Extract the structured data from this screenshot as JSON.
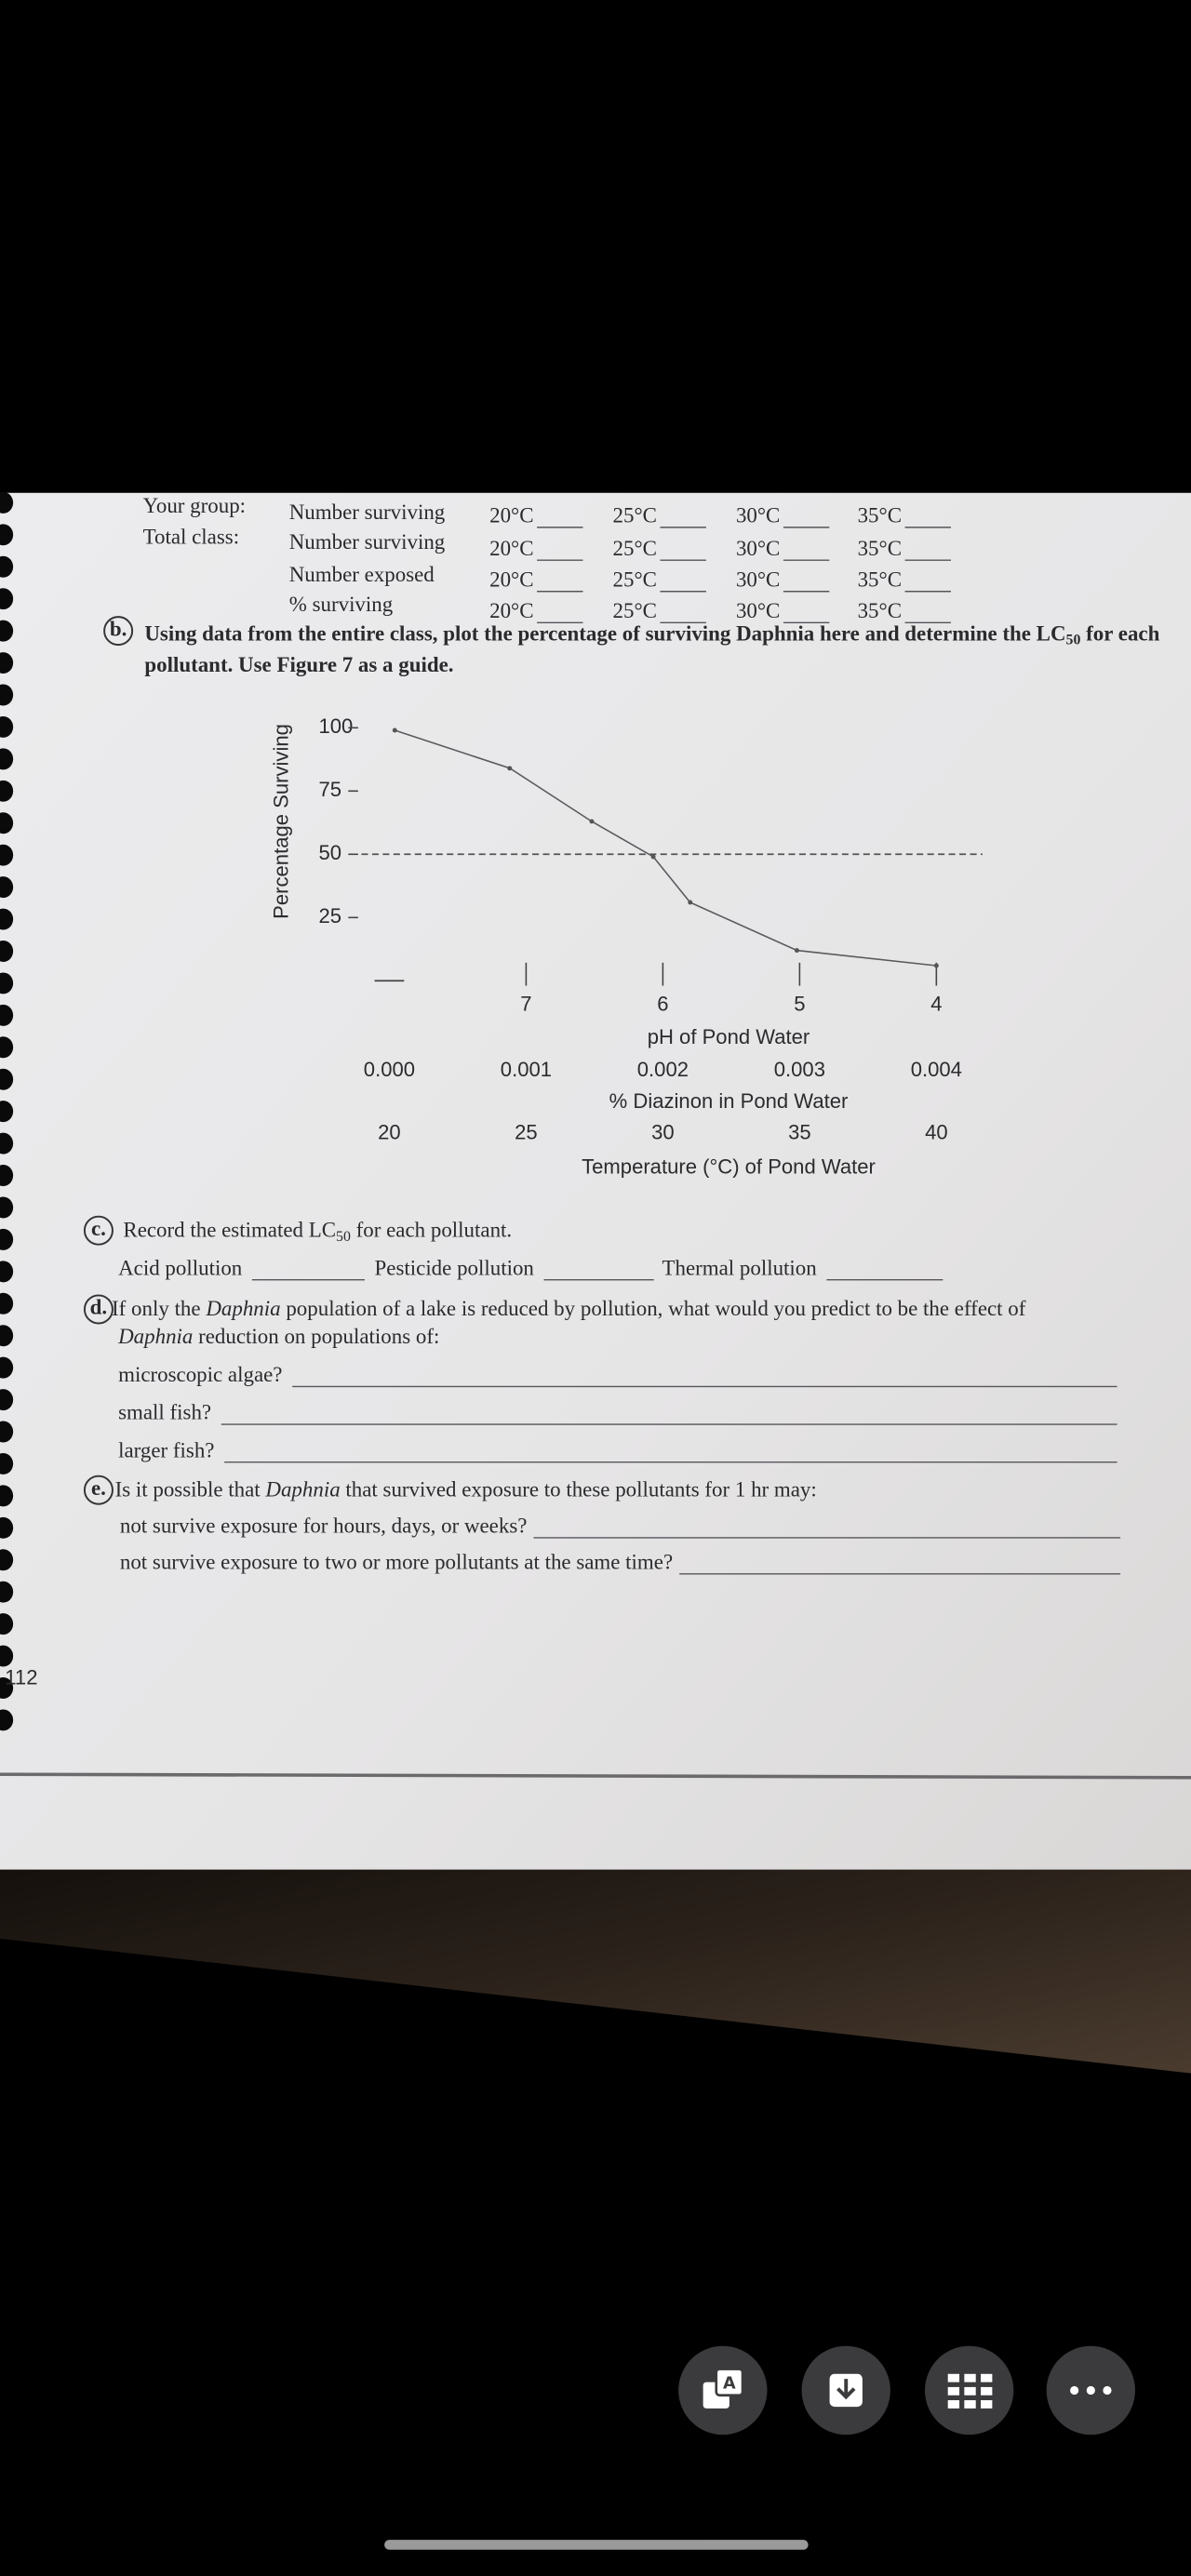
{
  "header_table": {
    "rows": [
      {
        "group": "Your group:",
        "measure": "Number surviving",
        "temps": [
          "20°C",
          "25°C",
          "30°C",
          "35°C"
        ]
      },
      {
        "group": "Total class:",
        "measure": "Number surviving",
        "temps": [
          "20°C",
          "25°C",
          "30°C",
          "35°C"
        ]
      },
      {
        "measure": "Number exposed",
        "temps": [
          "20°C",
          "25°C",
          "30°C",
          "35°C"
        ]
      },
      {
        "measure": "% surviving",
        "temps": [
          "20°C",
          "25°C",
          "30°C",
          "35°C"
        ]
      }
    ]
  },
  "question_b": {
    "marker": "b.",
    "line1": [
      "Using data from the entire class, plot the percentage of surviving Daphnia here and determine the LC",
      "50",
      " for each"
    ],
    "line2": "pollutant. Use Figure 7 as a guide."
  },
  "graph": {
    "type": "line",
    "y_label": "Percentage Surviving",
    "ylim": [
      0,
      100
    ],
    "yticks": [
      100,
      75,
      50,
      25
    ],
    "reference_line": 50,
    "x_axes": [
      {
        "label": "pH of Pond Water",
        "xlim": [
          8,
          4
        ],
        "xticks": [
          7,
          6,
          5,
          4
        ]
      },
      {
        "label": "% Diazinon in Pond Water",
        "xlim": [
          0,
          0.004
        ],
        "xticks": [
          {
            "value": 0,
            "label": "0.000"
          },
          {
            "value": 0.001,
            "label": "0.001"
          },
          {
            "value": 0.002,
            "label": "0.002"
          },
          {
            "value": 0.003,
            "label": "0.003"
          },
          {
            "value": 0.004,
            "label": "0.004"
          }
        ]
      },
      {
        "label": "Temperature (°C) of Pond Water",
        "xlim": [
          20,
          40
        ],
        "xticks": [
          20,
          25,
          30,
          35,
          40
        ]
      }
    ],
    "curve": {
      "x": [
        7.96,
        7.12,
        6.52,
        6.07,
        5.8,
        5.02,
        4.0
      ],
      "y": [
        99,
        84,
        63,
        49,
        31,
        12,
        6
      ]
    }
  },
  "question_c": {
    "marker": "c.",
    "text": [
      "Record the estimated LC",
      "50",
      " for each pollutant."
    ],
    "blanks": [
      "Acid pollution",
      "Pesticide pollution",
      "Thermal pollution"
    ]
  },
  "question_d": {
    "marker": "d.",
    "line1": [
      "If only the ",
      "Daphnia",
      " population of a lake is reduced by pollution, what would you predict to be the effect of"
    ],
    "line2": [
      "Daphnia",
      " reduction on populations of:"
    ],
    "items": [
      "microscopic algae?",
      "small fish?",
      "larger fish?"
    ]
  },
  "question_e": {
    "marker": "e.",
    "text": [
      "Is it possible that ",
      "Daphnia",
      " that survived exposure to these pollutants for 1 hr may:"
    ],
    "items": [
      "not survive exposure for hours, days, or weeks?",
      "not survive exposure to two or more pollutants at the same time?"
    ]
  },
  "page_number": "112"
}
